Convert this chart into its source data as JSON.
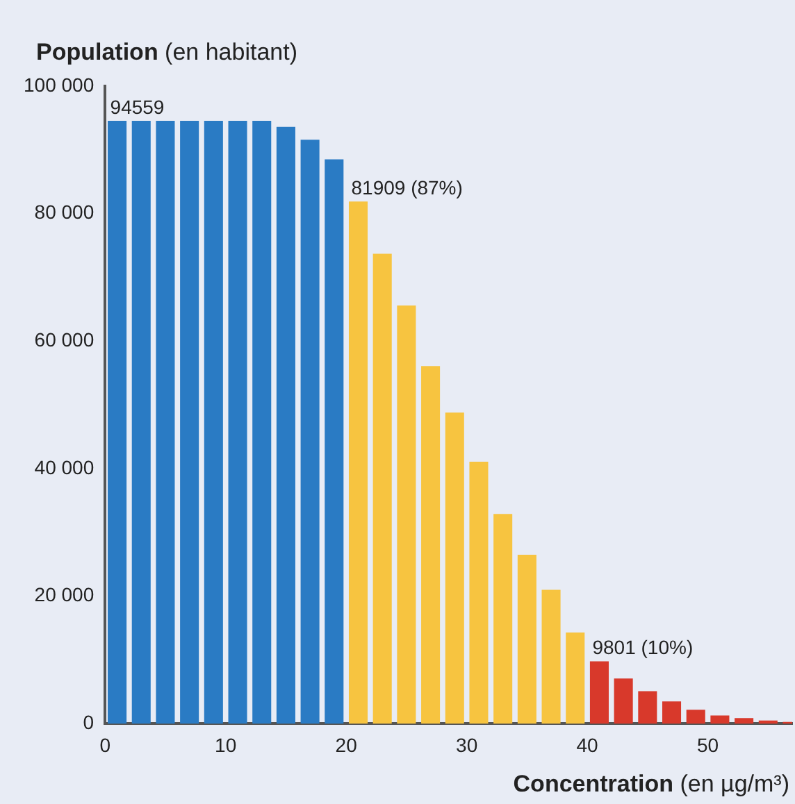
{
  "chart_data": {
    "type": "histogram",
    "ylabel": "Population (en habitant)",
    "xlabel": "Concentration (en µg/m³)",
    "bins": [
      0,
      2,
      4,
      6,
      8,
      10,
      12,
      14,
      16,
      18,
      20,
      22,
      24,
      26,
      28,
      30,
      32,
      34,
      36,
      38,
      40,
      42,
      44,
      46,
      48,
      50,
      52,
      54,
      56,
      58
    ],
    "values": [
      94559,
      94559,
      94559,
      94559,
      94559,
      94559,
      94559,
      93600,
      91600,
      88500,
      81909,
      73700,
      65600,
      56100,
      48800,
      41100,
      32900,
      26500,
      21000,
      14300,
      9801,
      7100,
      5100,
      3500,
      2200,
      1300,
      900,
      500,
      300
    ],
    "colors": [
      "#2a7bc4",
      "#2a7bc4",
      "#2a7bc4",
      "#2a7bc4",
      "#2a7bc4",
      "#2a7bc4",
      "#2a7bc4",
      "#2a7bc4",
      "#2a7bc4",
      "#2a7bc4",
      "#f7c440",
      "#f7c440",
      "#f7c440",
      "#f7c440",
      "#f7c440",
      "#f7c440",
      "#f7c440",
      "#f7c440",
      "#f7c440",
      "#f7c440",
      "#d8392b",
      "#d8392b",
      "#d8392b",
      "#d8392b",
      "#d8392b",
      "#d8392b",
      "#d8392b",
      "#d8392b",
      "#d8392b"
    ],
    "xlim": [
      0,
      57
    ],
    "xticks": [
      0,
      10,
      20,
      30,
      40,
      50
    ],
    "ylim": [
      0,
      100000
    ],
    "yticks": [
      0,
      {
        "value": 20000,
        "label": "20 000"
      },
      {
        "value": 40000,
        "label": "40 000"
      },
      {
        "value": 60000,
        "label": "60 000"
      },
      {
        "value": 80000,
        "label": "80 000"
      },
      {
        "value": 100000,
        "label": "100 000"
      }
    ],
    "grid": false,
    "legend": false,
    "annotations": [
      {
        "text": "94559",
        "x": 1,
        "y": 94559
      },
      {
        "text": "81909 (87%)",
        "x": 21,
        "y": 81909
      },
      {
        "text": "9801 (10%)",
        "x": 41,
        "y": 9801
      }
    ]
  }
}
